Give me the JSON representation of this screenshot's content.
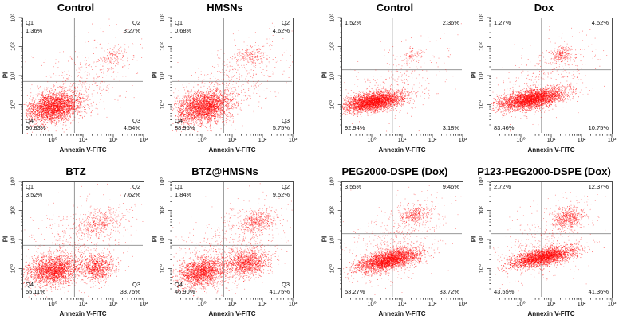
{
  "figure": {
    "xlabel": "Annexin V-FITC",
    "ylabel": "PI",
    "x_tick_labels": [
      "10⁰",
      "10¹",
      "10²",
      "10³"
    ],
    "y_tick_labels": [
      "10⁰",
      "10¹",
      "10²",
      "10³"
    ],
    "dot_color": "#ff0000",
    "axis_color": "#3a3a3a",
    "crosshair_color": "#8a8a8a",
    "background": "#ffffff"
  },
  "chart_data": [
    {
      "type": "scatter",
      "title": "Control",
      "group": "left",
      "xlabel": "Annexin V-FITC",
      "ylabel": "PI",
      "axis_range_log10": [
        -1,
        3
      ],
      "crosshair": {
        "x": 0.72,
        "y": 0.8
      },
      "quadrants": [
        {
          "name": "Q1",
          "value": "1.36%",
          "pos": "top-left"
        },
        {
          "name": "Q2",
          "value": "3.27%",
          "pos": "top-right"
        },
        {
          "name": "Q3",
          "value": "4.54%",
          "pos": "bottom-right"
        },
        {
          "name": "Q4",
          "value": "90.83%",
          "pos": "bottom-left"
        }
      ],
      "clusters": [
        {
          "cx": 0.05,
          "cy": -0.08,
          "sx": 0.42,
          "sy": 0.26,
          "corr": 0.25,
          "n": 2600,
          "a": 0.6
        },
        {
          "cx": 0.9,
          "cy": 0.75,
          "sx": 1.0,
          "sy": 0.85,
          "corr": 0.55,
          "n": 520,
          "a": 0.5
        },
        {
          "cx": 1.95,
          "cy": 1.65,
          "sx": 0.22,
          "sy": 0.16,
          "corr": 0.2,
          "n": 130,
          "a": 0.55
        }
      ]
    },
    {
      "type": "scatter",
      "title": "HMSNs",
      "group": "left",
      "xlabel": "Annexin V-FITC",
      "ylabel": "PI",
      "axis_range_log10": [
        -1,
        3
      ],
      "crosshair": {
        "x": 0.72,
        "y": 0.8
      },
      "quadrants": [
        {
          "name": "Q1",
          "value": "0.68%",
          "pos": "top-left"
        },
        {
          "name": "Q2",
          "value": "4.62%",
          "pos": "top-right"
        },
        {
          "name": "Q3",
          "value": "5.75%",
          "pos": "bottom-right"
        },
        {
          "name": "Q4",
          "value": "88.95%",
          "pos": "bottom-left"
        }
      ],
      "clusters": [
        {
          "cx": 0.05,
          "cy": -0.08,
          "sx": 0.45,
          "sy": 0.28,
          "corr": 0.25,
          "n": 2600,
          "a": 0.6
        },
        {
          "cx": 0.95,
          "cy": 0.7,
          "sx": 1.0,
          "sy": 0.8,
          "corr": 0.55,
          "n": 560,
          "a": 0.5
        },
        {
          "cx": 1.62,
          "cy": 1.72,
          "sx": 0.25,
          "sy": 0.18,
          "corr": 0.2,
          "n": 170,
          "a": 0.55
        }
      ]
    },
    {
      "type": "scatter",
      "title": "Control",
      "group": "right",
      "xlabel": "Annexin V-FITC",
      "ylabel": "PI",
      "axis_range_log10": [
        -1,
        3
      ],
      "crosshair": {
        "x": 0.68,
        "y": 1.2
      },
      "quadrants": [
        {
          "name": null,
          "value": "1.52%",
          "pos": "top-left"
        },
        {
          "name": null,
          "value": "2.36%",
          "pos": "top-right"
        },
        {
          "name": null,
          "value": "3.18%",
          "pos": "bottom-right"
        },
        {
          "name": null,
          "value": "92.94%",
          "pos": "bottom-left"
        }
      ],
      "clusters": [
        {
          "cx": 0.05,
          "cy": 0.1,
          "sx": 0.5,
          "sy": 0.17,
          "corr": 0.45,
          "n": 3000,
          "a": 0.6
        },
        {
          "cx": 0.8,
          "cy": 0.7,
          "sx": 0.9,
          "sy": 0.75,
          "corr": 0.5,
          "n": 320,
          "a": 0.5
        },
        {
          "cx": 1.35,
          "cy": 1.7,
          "sx": 0.14,
          "sy": 0.11,
          "corr": 0.2,
          "n": 70,
          "a": 0.55
        }
      ]
    },
    {
      "type": "scatter",
      "title": "Dox",
      "group": "right",
      "xlabel": "Annexin V-FITC",
      "ylabel": "PI",
      "axis_range_log10": [
        -1,
        3
      ],
      "crosshair": {
        "x": 0.68,
        "y": 1.2
      },
      "quadrants": [
        {
          "name": null,
          "value": "1.27%",
          "pos": "top-left"
        },
        {
          "name": null,
          "value": "4.52%",
          "pos": "top-right"
        },
        {
          "name": null,
          "value": "10.75%",
          "pos": "bottom-right"
        },
        {
          "name": null,
          "value": "83.46%",
          "pos": "bottom-left"
        }
      ],
      "clusters": [
        {
          "cx": 0.35,
          "cy": 0.2,
          "sx": 0.55,
          "sy": 0.18,
          "corr": 0.5,
          "n": 3100,
          "a": 0.6
        },
        {
          "cx": 0.8,
          "cy": 0.8,
          "sx": 0.9,
          "sy": 0.75,
          "corr": 0.5,
          "n": 420,
          "a": 0.5
        },
        {
          "cx": 1.35,
          "cy": 1.75,
          "sx": 0.18,
          "sy": 0.14,
          "corr": 0.2,
          "n": 220,
          "a": 0.55
        }
      ]
    },
    {
      "type": "scatter",
      "title": "BTZ",
      "group": "left",
      "xlabel": "Annexin V-FITC",
      "ylabel": "PI",
      "axis_range_log10": [
        -1,
        3
      ],
      "crosshair": {
        "x": 0.72,
        "y": 0.8
      },
      "quadrants": [
        {
          "name": "Q1",
          "value": "3.52%",
          "pos": "top-left"
        },
        {
          "name": "Q2",
          "value": "7.62%",
          "pos": "top-right"
        },
        {
          "name": "Q3",
          "value": "33.75%",
          "pos": "bottom-right"
        },
        {
          "name": "Q4",
          "value": "55.11%",
          "pos": "bottom-left"
        }
      ],
      "clusters": [
        {
          "cx": 0.0,
          "cy": -0.05,
          "sx": 0.42,
          "sy": 0.25,
          "corr": 0.2,
          "n": 2000,
          "a": 0.6
        },
        {
          "cx": 1.45,
          "cy": 0.05,
          "sx": 0.3,
          "sy": 0.22,
          "corr": 0.1,
          "n": 850,
          "a": 0.6
        },
        {
          "cx": 1.5,
          "cy": 1.55,
          "sx": 0.4,
          "sy": 0.25,
          "corr": 0.3,
          "n": 420,
          "a": 0.5
        },
        {
          "cx": 0.7,
          "cy": 0.75,
          "sx": 1.0,
          "sy": 0.85,
          "corr": 0.5,
          "n": 650,
          "a": 0.45
        }
      ]
    },
    {
      "type": "scatter",
      "title": "BTZ@HMSNs",
      "group": "left",
      "xlabel": "Annexin V-FITC",
      "ylabel": "PI",
      "axis_range_log10": [
        -1,
        3
      ],
      "crosshair": {
        "x": 0.72,
        "y": 0.8
      },
      "quadrants": [
        {
          "name": "Q1",
          "value": "1.84%",
          "pos": "top-left"
        },
        {
          "name": "Q2",
          "value": "9.52%",
          "pos": "top-right"
        },
        {
          "name": "Q3",
          "value": "41.75%",
          "pos": "bottom-right"
        },
        {
          "name": "Q4",
          "value": "46.90%",
          "pos": "bottom-left"
        }
      ],
      "clusters": [
        {
          "cx": 0.0,
          "cy": -0.1,
          "sx": 0.4,
          "sy": 0.25,
          "corr": 0.2,
          "n": 1700,
          "a": 0.6
        },
        {
          "cx": 1.5,
          "cy": 0.2,
          "sx": 0.35,
          "sy": 0.24,
          "corr": 0.15,
          "n": 1100,
          "a": 0.6
        },
        {
          "cx": 1.8,
          "cy": 1.6,
          "sx": 0.32,
          "sy": 0.2,
          "corr": 0.25,
          "n": 480,
          "a": 0.5
        },
        {
          "cx": 0.8,
          "cy": 0.7,
          "sx": 1.0,
          "sy": 0.8,
          "corr": 0.5,
          "n": 650,
          "a": 0.45
        }
      ]
    },
    {
      "type": "scatter",
      "title": "PEG2000-DSPE (Dox)",
      "group": "right",
      "xlabel": "Annexin V-FITC",
      "ylabel": "PI",
      "axis_range_log10": [
        -1,
        3
      ],
      "crosshair": {
        "x": 0.68,
        "y": 1.2
      },
      "quadrants": [
        {
          "name": null,
          "value": "3.55%",
          "pos": "top-left"
        },
        {
          "name": null,
          "value": "9.46%",
          "pos": "top-right"
        },
        {
          "name": null,
          "value": "33.72%",
          "pos": "bottom-right"
        },
        {
          "name": null,
          "value": "53.27%",
          "pos": "bottom-left"
        }
      ],
      "clusters": [
        {
          "cx": 0.55,
          "cy": 0.3,
          "sx": 0.52,
          "sy": 0.2,
          "corr": 0.55,
          "n": 2700,
          "a": 0.6
        },
        {
          "cx": 1.4,
          "cy": 1.85,
          "sx": 0.24,
          "sy": 0.17,
          "corr": 0.2,
          "n": 320,
          "a": 0.55
        },
        {
          "cx": 0.7,
          "cy": 0.9,
          "sx": 0.9,
          "sy": 0.8,
          "corr": 0.5,
          "n": 620,
          "a": 0.45
        }
      ]
    },
    {
      "type": "scatter",
      "title": "P123-PEG2000-DSPE (Dox)",
      "group": "right",
      "xlabel": "Annexin V-FITC",
      "ylabel": "PI",
      "axis_range_log10": [
        -1,
        3
      ],
      "crosshair": {
        "x": 0.68,
        "y": 1.2
      },
      "quadrants": [
        {
          "name": null,
          "value": "2.72%",
          "pos": "top-left"
        },
        {
          "name": null,
          "value": "12.37%",
          "pos": "top-right"
        },
        {
          "name": null,
          "value": "41.36%",
          "pos": "bottom-right"
        },
        {
          "name": null,
          "value": "43.55%",
          "pos": "bottom-left"
        }
      ],
      "clusters": [
        {
          "cx": 0.7,
          "cy": 0.4,
          "sx": 0.52,
          "sy": 0.17,
          "corr": 0.6,
          "n": 2500,
          "a": 0.6
        },
        {
          "cx": 1.55,
          "cy": 1.75,
          "sx": 0.26,
          "sy": 0.18,
          "corr": 0.2,
          "n": 480,
          "a": 0.55
        },
        {
          "cx": 0.8,
          "cy": 0.9,
          "sx": 0.9,
          "sy": 0.75,
          "corr": 0.5,
          "n": 520,
          "a": 0.45
        }
      ]
    }
  ]
}
